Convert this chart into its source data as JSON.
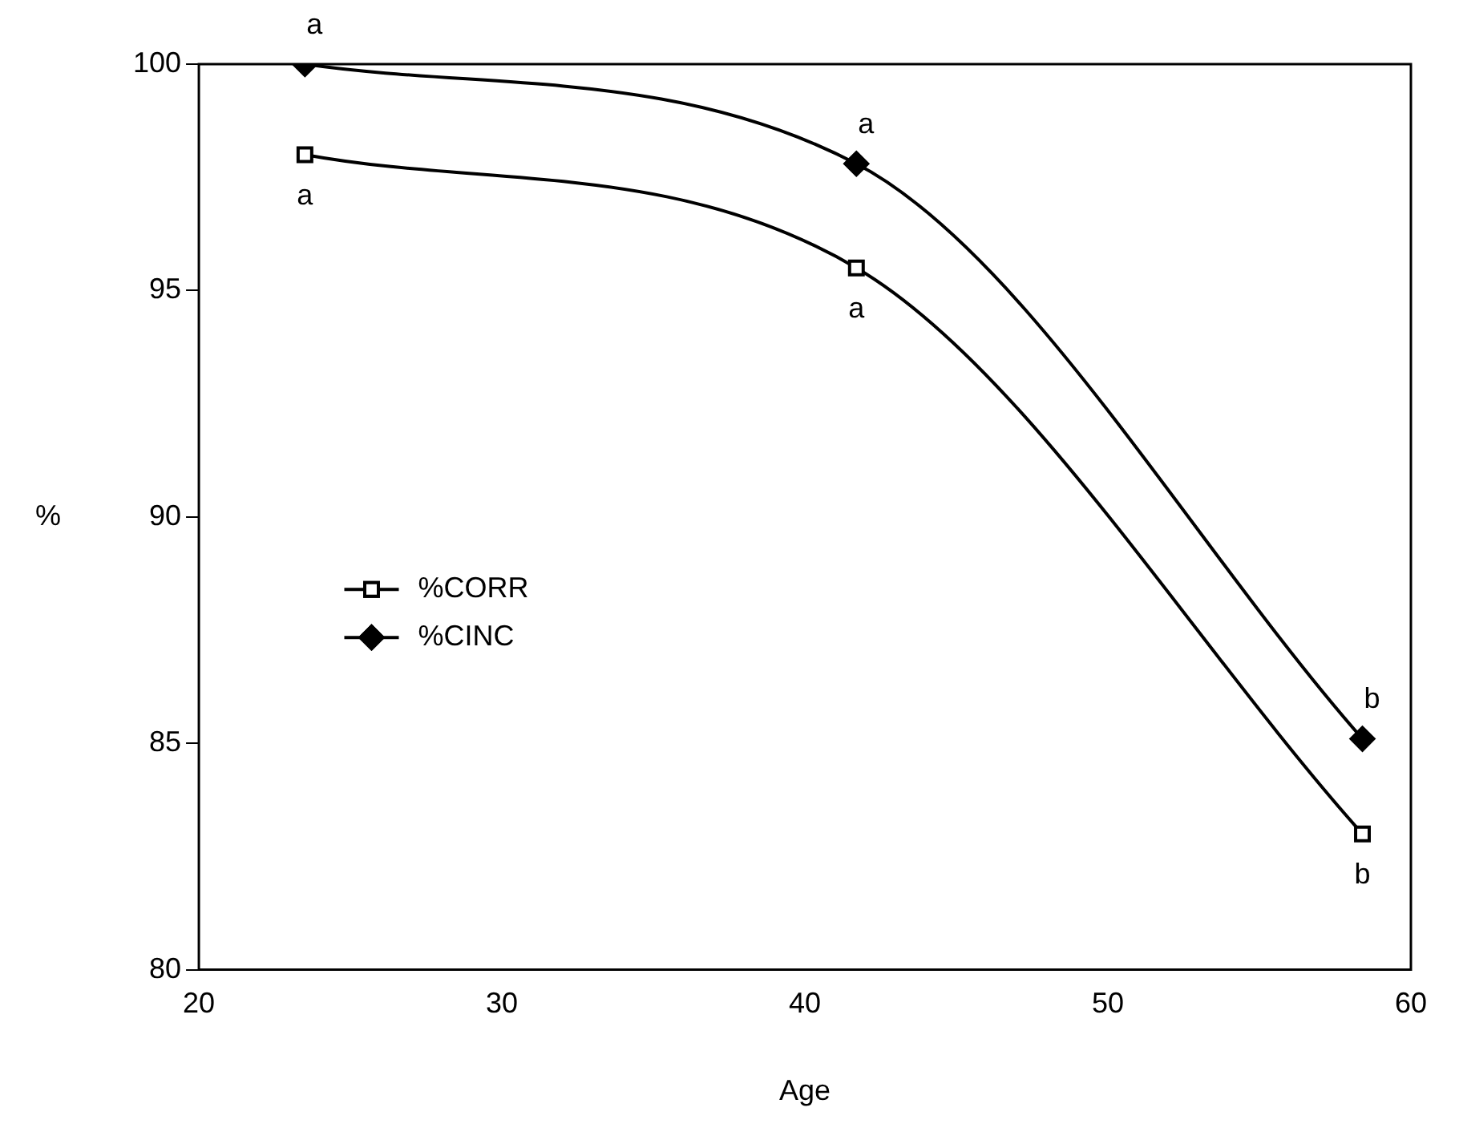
{
  "chart_data": {
    "type": "line",
    "xlabel": "Age",
    "ylabel": "%",
    "series": [
      {
        "name": "%CORR",
        "color": "#000000",
        "marker": "square",
        "x": [
          23.5,
          41.7,
          58.4
        ],
        "values": [
          98.0,
          95.5,
          83.0
        ]
      },
      {
        "name": "%CINC",
        "color": "#000000",
        "marker": "diamond",
        "x": [
          23.5,
          41.7,
          58.4
        ],
        "values": [
          100.0,
          97.8,
          85.1
        ]
      }
    ],
    "xlim": [
      20,
      60
    ],
    "xticks": [
      20,
      30,
      40,
      50,
      60
    ],
    "ylim": [
      80,
      100
    ],
    "yticks": [
      80,
      85,
      90,
      95,
      100
    ],
    "grid": false,
    "legend": "center left",
    "annotations": [
      {
        "text": "a",
        "x": 23.5,
        "y": 100.0
      },
      {
        "text": "a",
        "x": 41.7,
        "y": 97.8
      },
      {
        "text": "b",
        "x": 58.4,
        "y": 85.1
      },
      {
        "text": "a",
        "x": 23.5,
        "y": 98.0
      },
      {
        "text": "a",
        "x": 41.7,
        "y": 95.5
      },
      {
        "text": "b",
        "x": 58.4,
        "y": 83.0
      }
    ]
  }
}
